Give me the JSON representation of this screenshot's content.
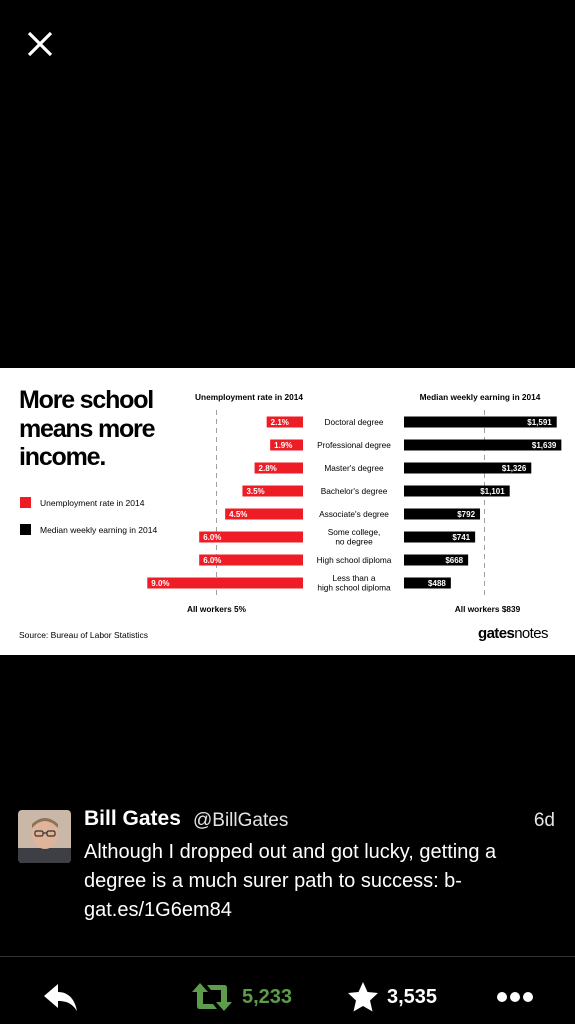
{
  "viewer": {
    "close_icon": "close-icon"
  },
  "infographic": {
    "headline": "More school\nmeans more\nincome.",
    "legend": [
      {
        "label": "Unemployment rate in 2014",
        "color": "#ee1c25"
      },
      {
        "label": "Median weekly earning in 2014",
        "color": "#000000"
      }
    ],
    "source": "Source: Bureau of Labor Statistics",
    "brand": {
      "bold": "gates",
      "light": "notes"
    }
  },
  "chart_data": [
    {
      "type": "bar",
      "orientation": "horizontal",
      "title": "Unemployment rate in 2014",
      "categories": [
        "Doctoral degree",
        "Professional degree",
        "Master's degree",
        "Bachelor's degree",
        "Associate's degree",
        "Some college,\nno degree",
        "High school diploma",
        "Less than a\nhigh school diploma"
      ],
      "values": [
        2.1,
        1.9,
        2.8,
        3.5,
        4.5,
        6.0,
        6.0,
        9.0
      ],
      "labels": [
        "2.1%",
        "1.9%",
        "2.8%",
        "3.5%",
        "4.5%",
        "6.0%",
        "6.0%",
        "9.0%"
      ],
      "reference": {
        "value": 5,
        "label": "All workers 5%"
      },
      "color": "#ee1c25",
      "direction": "extends-left"
    },
    {
      "type": "bar",
      "orientation": "horizontal",
      "title": "Median weekly earning in 2014",
      "categories": [
        "Doctoral degree",
        "Professional degree",
        "Master's degree",
        "Bachelor's degree",
        "Associate's degree",
        "Some college,\nno degree",
        "High school diploma",
        "Less than a\nhigh school diploma"
      ],
      "values": [
        1591,
        1639,
        1326,
        1101,
        792,
        741,
        668,
        488
      ],
      "labels": [
        "$1,591",
        "$1,639",
        "$1,326",
        "$1,101",
        "$792",
        "$741",
        "$668",
        "$488"
      ],
      "reference": {
        "value": 839,
        "label": "All workers $839"
      },
      "color": "#000000",
      "direction": "extends-right"
    }
  ],
  "tweet": {
    "name": "Bill Gates",
    "handle": "@BillGates",
    "time": "6d",
    "text": "Although I dropped out and got lucky, getting a degree is a much surer path to success: b-gat.es/1G6em84"
  },
  "actions": {
    "reply_icon": "reply-icon",
    "retweet_icon": "retweet-icon",
    "retweet_count": "5,233",
    "retweet_color": "#5c9c4a",
    "favorite_icon": "star-icon",
    "favorite_count": "3,535",
    "more_icon": "more-icon"
  }
}
